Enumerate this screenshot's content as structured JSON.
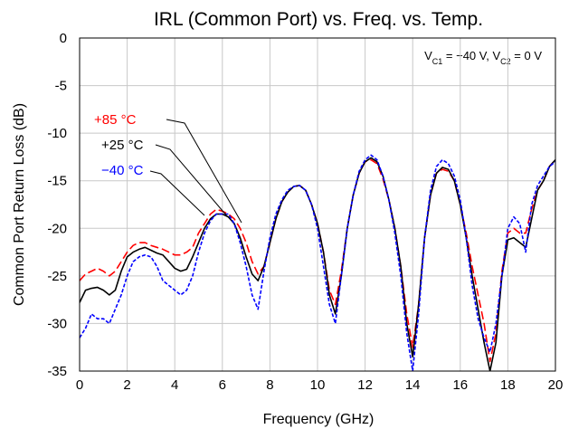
{
  "chart_data": {
    "type": "line",
    "title": "IRL (Common Port) vs. Freq. vs. Temp.",
    "annotation": [
      {
        "text": "V"
      },
      {
        "text": "C1",
        "sub": true
      },
      {
        "text": " = −40 V, V"
      },
      {
        "text": "C2",
        "sub": true
      },
      {
        "text": " = 0 V"
      }
    ],
    "x_label": "Frequency (GHz)",
    "y_label": "Common Port Return Loss (dB)",
    "xlim": [
      0,
      20
    ],
    "xticks": [
      0,
      2,
      4,
      6,
      8,
      10,
      12,
      14,
      16,
      18,
      20
    ],
    "ylim": [
      -35,
      0
    ],
    "yticks": [
      -35,
      -30,
      -25,
      -20,
      -15,
      -10,
      -5,
      0
    ],
    "grid": true,
    "x": [
      0,
      0.25,
      0.5,
      0.75,
      1,
      1.25,
      1.5,
      1.75,
      2,
      2.25,
      2.5,
      2.75,
      3,
      3.25,
      3.5,
      3.75,
      4,
      4.25,
      4.5,
      4.75,
      5,
      5.25,
      5.5,
      5.75,
      6,
      6.25,
      6.5,
      6.75,
      7,
      7.25,
      7.5,
      7.75,
      8,
      8.25,
      8.5,
      8.75,
      9,
      9.25,
      9.5,
      9.75,
      10,
      10.25,
      10.5,
      10.75,
      11,
      11.25,
      11.5,
      11.75,
      12,
      12.25,
      12.5,
      12.75,
      13,
      13.25,
      13.5,
      13.75,
      14,
      14.25,
      14.5,
      14.75,
      15,
      15.25,
      15.5,
      15.75,
      16,
      16.25,
      16.5,
      16.75,
      17,
      17.25,
      17.5,
      17.75,
      18,
      18.25,
      18.5,
      18.75,
      19,
      19.25,
      19.5,
      19.75,
      20
    ],
    "series": [
      {
        "name": "+85 °C",
        "color": "#ff0000",
        "line_style": "long-dash",
        "values": [
          -25.5,
          -24.8,
          -24.5,
          -24.2,
          -24.5,
          -25,
          -24.5,
          -23.5,
          -22.5,
          -21.8,
          -21.5,
          -21.5,
          -21.8,
          -22,
          -22.2,
          -22.5,
          -22.8,
          -22.8,
          -22.5,
          -22,
          -20.5,
          -19.5,
          -18.5,
          -18,
          -18.2,
          -18.5,
          -19,
          -20,
          -21.5,
          -23.5,
          -24.8,
          -24,
          -21.5,
          -19,
          -17.2,
          -16.2,
          -15.6,
          -15.5,
          -16,
          -17.5,
          -19.5,
          -22.5,
          -26.5,
          -28,
          -24.5,
          -20,
          -16.5,
          -14.2,
          -13,
          -12.8,
          -13.2,
          -14.8,
          -17,
          -20,
          -24,
          -29,
          -32.5,
          -28,
          -21,
          -16.5,
          -14.2,
          -13.8,
          -14,
          -15,
          -17.5,
          -20.5,
          -24,
          -27,
          -30,
          -34,
          -31,
          -24.5,
          -20.5,
          -20,
          -20.5,
          -20.5,
          -18,
          -16,
          -15,
          -13.5,
          -12.8
        ]
      },
      {
        "name": "+25 °C",
        "color": "#000000",
        "line_style": "solid",
        "values": [
          -27.8,
          -26.5,
          -26.3,
          -26.2,
          -26.5,
          -27,
          -26.5,
          -24.5,
          -23,
          -22.5,
          -22.2,
          -22,
          -22.3,
          -22.6,
          -22.8,
          -23.5,
          -24.2,
          -24.5,
          -24.3,
          -23,
          -21.5,
          -20,
          -19,
          -18.5,
          -18.5,
          -18.8,
          -19.5,
          -21,
          -23,
          -24.8,
          -25.5,
          -24,
          -21.5,
          -19,
          -17.2,
          -16.2,
          -15.6,
          -15.5,
          -16,
          -17.5,
          -19.5,
          -22.5,
          -27,
          -29,
          -25,
          -20,
          -16.5,
          -14.2,
          -13,
          -12.6,
          -13,
          -14.5,
          -17,
          -20,
          -24,
          -30,
          -33.5,
          -28,
          -21,
          -16.5,
          -14.2,
          -13.6,
          -13.8,
          -15,
          -17.5,
          -21,
          -25,
          -28.5,
          -32,
          -35,
          -32,
          -25,
          -21.2,
          -21,
          -21.5,
          -22,
          -19,
          -16,
          -15,
          -13.5,
          -12.8
        ]
      },
      {
        "name": "−40 °C",
        "color": "#0000ff",
        "line_style": "short-dash",
        "values": [
          -31.5,
          -30.5,
          -29,
          -29.5,
          -29.5,
          -30,
          -28.5,
          -27,
          -25,
          -23.5,
          -23,
          -22.8,
          -23,
          -24,
          -25.5,
          -26,
          -26.5,
          -27,
          -26.5,
          -25,
          -22.5,
          -20.5,
          -19.2,
          -18.5,
          -18.5,
          -18.5,
          -19.5,
          -21.5,
          -24,
          -27,
          -28.5,
          -24.5,
          -21,
          -18.5,
          -17,
          -16,
          -15.6,
          -15.5,
          -16,
          -17.5,
          -20,
          -24,
          -28,
          -30,
          -25,
          -20,
          -16.5,
          -14,
          -12.8,
          -12.3,
          -12.8,
          -14.5,
          -17,
          -20.5,
          -25,
          -31,
          -35,
          -29,
          -21,
          -16,
          -13.5,
          -12.8,
          -13.2,
          -14.5,
          -17,
          -21,
          -26,
          -29.5,
          -31.5,
          -33,
          -30,
          -25,
          -20,
          -18.8,
          -19.5,
          -22.5,
          -17.5,
          -15.5,
          -14.5,
          -13.5,
          -13
        ]
      }
    ]
  }
}
